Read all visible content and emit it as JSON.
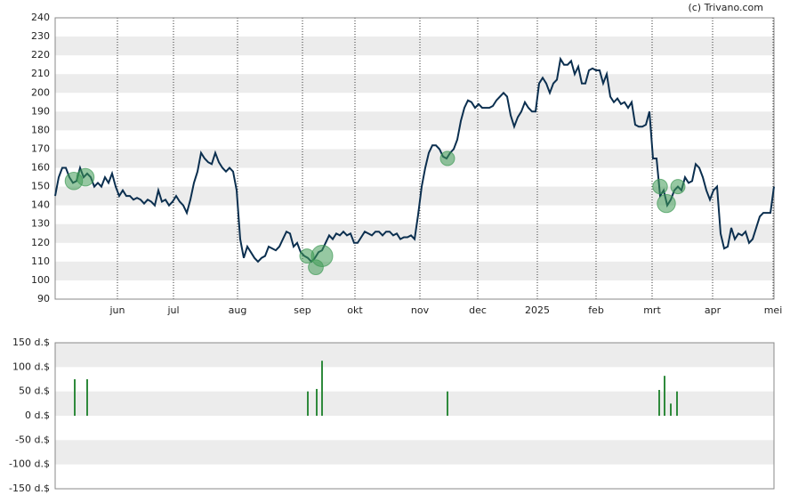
{
  "credit": "(c) Trivano.com",
  "chart_data": [
    {
      "type": "line",
      "ylim": [
        90,
        240
      ],
      "yticks": [
        90,
        100,
        110,
        120,
        130,
        140,
        150,
        160,
        170,
        180,
        190,
        200,
        210,
        220,
        230,
        240
      ],
      "xlim": [
        0,
        202
      ],
      "xticks": [
        {
          "value": 17.5,
          "label": "jun"
        },
        {
          "value": 33.25,
          "label": "jul"
        },
        {
          "value": 51.25,
          "label": "aug"
        },
        {
          "value": 69.5,
          "label": "sep"
        },
        {
          "value": 84.25,
          "label": "okt"
        },
        {
          "value": 102.5,
          "label": "nov"
        },
        {
          "value": 118.75,
          "label": "dec"
        },
        {
          "value": 135.5,
          "label": "2025"
        },
        {
          "value": 152,
          "label": "feb"
        },
        {
          "value": 167.75,
          "label": "mrt"
        },
        {
          "value": 184.75,
          "label": "apr"
        },
        {
          "value": 201.75,
          "label": "mei"
        }
      ],
      "grid": true,
      "series": [
        {
          "color": "#0b2f4f",
          "values": [
            145,
            155,
            160,
            160,
            155,
            152,
            153,
            160,
            155,
            157,
            155,
            150,
            152,
            150,
            155,
            152,
            157,
            150,
            145,
            148,
            145,
            145,
            143,
            144,
            143,
            141,
            143,
            142,
            140,
            148,
            142,
            143,
            140,
            142,
            145,
            142,
            140,
            136,
            143,
            152,
            158,
            168,
            165,
            163,
            162,
            168,
            163,
            160,
            158,
            160,
            158,
            148,
            122,
            112,
            118,
            115,
            112,
            110,
            112,
            113,
            118,
            117,
            116,
            118,
            122,
            126,
            125,
            118,
            120,
            115,
            113,
            112,
            110,
            112,
            115,
            116,
            120,
            124,
            122,
            125,
            124,
            126,
            124,
            125,
            120,
            120,
            123,
            126,
            125,
            124,
            126,
            126,
            124,
            126,
            126,
            124,
            125,
            122,
            123,
            123,
            124,
            122,
            135,
            150,
            160,
            168,
            172,
            172,
            170,
            166,
            165,
            168,
            170,
            175,
            185,
            192,
            196,
            195,
            192,
            194,
            192,
            192,
            192,
            193,
            196,
            198,
            200,
            198,
            188,
            182,
            187,
            190,
            195,
            192,
            190,
            190,
            205,
            208,
            205,
            200,
            205,
            207,
            218,
            215,
            215,
            217,
            210,
            214,
            205,
            205,
            212,
            213,
            212,
            212,
            205,
            210,
            198,
            195,
            197,
            194,
            195,
            192,
            195,
            183,
            182,
            182,
            183,
            190,
            165,
            165,
            145,
            148,
            140,
            143,
            148,
            150,
            148,
            155,
            152,
            153,
            162,
            160,
            155,
            148,
            143,
            148,
            150,
            125,
            117,
            118,
            128,
            122,
            125,
            124,
            126,
            120,
            122,
            128,
            134,
            136,
            136,
            136,
            150
          ]
        }
      ],
      "bubbles": {
        "color": "#3f9a55",
        "x": [
          5.25,
          8.5,
          70.75,
          73.25,
          75,
          110.25,
          170,
          171.75,
          175
        ],
        "y": [
          153,
          155,
          113,
          107,
          113,
          165,
          150,
          141,
          150
        ],
        "sizes": [
          75,
          75,
          50,
          55,
          113,
          50,
          53,
          82,
          50
        ]
      }
    },
    {
      "type": "bar",
      "ylim": [
        -150,
        150
      ],
      "yticks": [
        {
          "value": -150,
          "label": "-150 d.$"
        },
        {
          "value": -100,
          "label": "-100 d.$"
        },
        {
          "value": -50,
          "label": "-50 d.$"
        },
        {
          "value": 0,
          "label": "0 d.$"
        },
        {
          "value": 50,
          "label": "50 d.$"
        },
        {
          "value": 100,
          "label": "100 d.$"
        },
        {
          "value": 150,
          "label": "150 d.$"
        }
      ],
      "xlim": [
        0,
        202
      ],
      "grid": true,
      "color": "#2f8a3c",
      "x": [
        5.5,
        9,
        71,
        73.5,
        75,
        110.25,
        169.75,
        171.25,
        173,
        174.75
      ],
      "values": [
        75,
        75,
        50,
        55,
        113,
        50,
        53,
        82,
        25,
        50
      ]
    }
  ]
}
